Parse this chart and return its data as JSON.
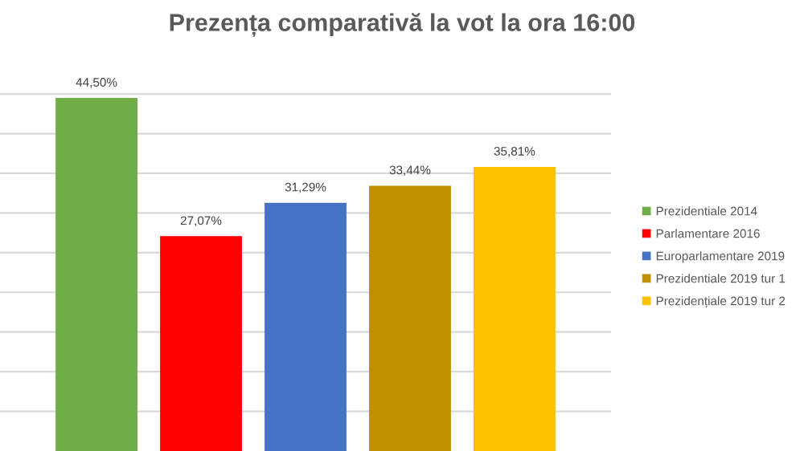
{
  "chart_data": {
    "type": "bar",
    "title": "Prezența comparativă la vot la ora 16:00",
    "categories": [
      null
    ],
    "series": [
      {
        "name": "Prezidentiale 2014",
        "color": "#70ad47",
        "values": [
          44.5
        ],
        "value_labels": [
          "44,50%"
        ]
      },
      {
        "name": "Parlamentare 2016",
        "color": "#ff0000",
        "values": [
          27.07
        ],
        "value_labels": [
          "27,07%"
        ]
      },
      {
        "name": "Europarlamentare 2019",
        "color": "#4472c4",
        "values": [
          31.29
        ],
        "value_labels": [
          "31,29%"
        ]
      },
      {
        "name": "Prezidentiale 2019 tur 1",
        "color": "#bf9000",
        "values": [
          33.44
        ],
        "value_labels": [
          "33,44%"
        ]
      },
      {
        "name": "Prezidențiale 2019 tur 2",
        "color": "#ffc000",
        "values": [
          35.81
        ],
        "value_labels": [
          "35,81%"
        ]
      }
    ],
    "yticks": [
      {
        "value": 5,
        "label": null
      },
      {
        "value": 10,
        "label": null
      },
      {
        "value": 15,
        "label": null
      },
      {
        "value": 20,
        "label": null
      },
      {
        "value": 25,
        "label": null
      },
      {
        "value": 30,
        "label": null
      },
      {
        "value": 35,
        "label": null
      },
      {
        "value": 40,
        "label": null
      },
      {
        "value": 45,
        "label": null
      }
    ],
    "grid": "y",
    "legend": "right"
  }
}
